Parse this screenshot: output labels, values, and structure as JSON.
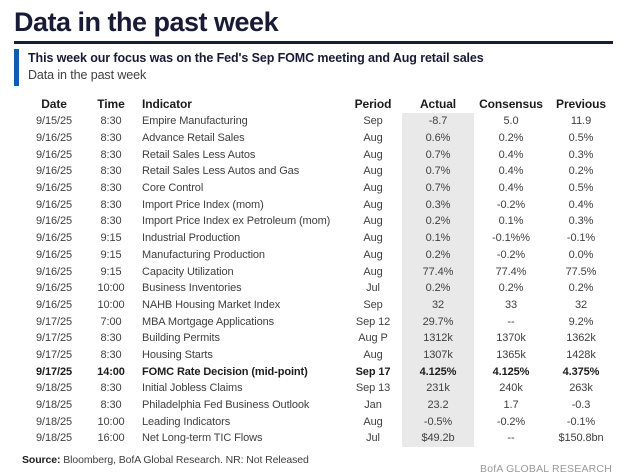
{
  "page": {
    "title": "Data in the past week",
    "headline": "This week our focus was on the Fed's Sep FOMC meeting and Aug retail sales",
    "subtitle": "Data in the past week",
    "source_label": "Source:",
    "source_text": " Bloomberg, BofA Global Research. NR: Not Released",
    "brand": "BofA GLOBAL RESEARCH"
  },
  "colors": {
    "title_navy": "#171b36",
    "accent_blue": "#1459b3",
    "body_text": "#404040",
    "actual_column_shade": "#e9e9e9"
  },
  "table": {
    "columns": [
      "Date",
      "Time",
      "Indicator",
      "Period",
      "Actual",
      "Consensus",
      "Previous"
    ],
    "rows": [
      {
        "date": "9/15/25",
        "time": "8:30",
        "indicator": "Empire Manufacturing",
        "period": "Sep",
        "actual": "-8.7",
        "consensus": "5.0",
        "previous": "11.9",
        "bold": false
      },
      {
        "date": "9/16/25",
        "time": "8:30",
        "indicator": "Advance Retail Sales",
        "period": "Aug",
        "actual": "0.6%",
        "consensus": "0.2%",
        "previous": "0.5%",
        "bold": false
      },
      {
        "date": "9/16/25",
        "time": "8:30",
        "indicator": "Retail Sales Less Autos",
        "period": "Aug",
        "actual": "0.7%",
        "consensus": "0.4%",
        "previous": "0.3%",
        "bold": false
      },
      {
        "date": "9/16/25",
        "time": "8:30",
        "indicator": "Retail Sales Less Autos and Gas",
        "period": "Aug",
        "actual": "0.7%",
        "consensus": "0.4%",
        "previous": "0.2%",
        "bold": false
      },
      {
        "date": "9/16/25",
        "time": "8:30",
        "indicator": "Core Control",
        "period": "Aug",
        "actual": "0.7%",
        "consensus": "0.4%",
        "previous": "0.5%",
        "bold": false
      },
      {
        "date": "9/16/25",
        "time": "8:30",
        "indicator": "Import Price Index (mom)",
        "period": "Aug",
        "actual": "0.3%",
        "consensus": "-0.2%",
        "previous": "0.4%",
        "bold": false
      },
      {
        "date": "9/16/25",
        "time": "8:30",
        "indicator": "Import Price Index ex Petroleum (mom)",
        "period": "Aug",
        "actual": "0.2%",
        "consensus": "0.1%",
        "previous": "0.3%",
        "bold": false
      },
      {
        "date": "9/16/25",
        "time": "9:15",
        "indicator": "Industrial Production",
        "period": "Aug",
        "actual": "0.1%",
        "consensus": "-0.1%%",
        "previous": "-0.1%",
        "bold": false
      },
      {
        "date": "9/16/25",
        "time": "9:15",
        "indicator": "Manufacturing Production",
        "period": "Aug",
        "actual": "0.2%",
        "consensus": "-0.2%",
        "previous": "0.0%",
        "bold": false
      },
      {
        "date": "9/16/25",
        "time": "9:15",
        "indicator": "Capacity Utilization",
        "period": "Aug",
        "actual": "77.4%",
        "consensus": "77.4%",
        "previous": "77.5%",
        "bold": false
      },
      {
        "date": "9/16/25",
        "time": "10:00",
        "indicator": "Business Inventories",
        "period": "Jul",
        "actual": "0.2%",
        "consensus": "0.2%",
        "previous": "0.2%",
        "bold": false
      },
      {
        "date": "9/16/25",
        "time": "10:00",
        "indicator": "NAHB Housing Market Index",
        "period": "Sep",
        "actual": "32",
        "consensus": "33",
        "previous": "32",
        "bold": false
      },
      {
        "date": "9/17/25",
        "time": "7:00",
        "indicator": "MBA Mortgage Applications",
        "period": "Sep 12",
        "actual": "29.7%",
        "consensus": "--",
        "previous": "9.2%",
        "bold": false
      },
      {
        "date": "9/17/25",
        "time": "8:30",
        "indicator": "Building Permits",
        "period": "Aug P",
        "actual": "1312k",
        "consensus": "1370k",
        "previous": "1362k",
        "bold": false
      },
      {
        "date": "9/17/25",
        "time": "8:30",
        "indicator": "Housing Starts",
        "period": "Aug",
        "actual": "1307k",
        "consensus": "1365k",
        "previous": "1428k",
        "bold": false
      },
      {
        "date": "9/17/25",
        "time": "14:00",
        "indicator": "FOMC Rate Decision (mid-point)",
        "period": "Sep 17",
        "actual": "4.125%",
        "consensus": "4.125%",
        "previous": "4.375%",
        "bold": true
      },
      {
        "date": "9/18/25",
        "time": "8:30",
        "indicator": "Initial Jobless Claims",
        "period": "Sep 13",
        "actual": "231k",
        "consensus": "240k",
        "previous": "263k",
        "bold": false
      },
      {
        "date": "9/18/25",
        "time": "8:30",
        "indicator": "Philadelphia Fed Business Outlook",
        "period": "Jan",
        "actual": "23.2",
        "consensus": "1.7",
        "previous": "-0.3",
        "bold": false
      },
      {
        "date": "9/18/25",
        "time": "10:00",
        "indicator": "Leading Indicators",
        "period": "Aug",
        "actual": "-0.5%",
        "consensus": "-0.2%",
        "previous": "-0.1%",
        "bold": false
      },
      {
        "date": "9/18/25",
        "time": "16:00",
        "indicator": "Net Long-term TIC Flows",
        "period": "Jul",
        "actual": "$49.2b",
        "consensus": "--",
        "previous": "$150.8bn",
        "bold": false
      }
    ]
  }
}
